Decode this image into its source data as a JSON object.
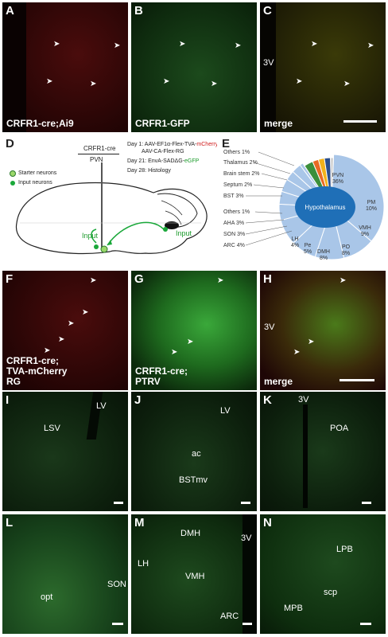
{
  "row1": {
    "A": {
      "letter": "A",
      "caption": "CRFR1-cre;Ai9"
    },
    "B": {
      "letter": "B",
      "caption": "CRFR1-GFP"
    },
    "C": {
      "letter": "C",
      "caption": "merge",
      "region": "3V"
    }
  },
  "D": {
    "letter": "D",
    "title": "CRFR1-cre",
    "subtitle": "PVN",
    "day1_prefix": "Day 1: AAV-EF1α-Flex-TVA-",
    "day1_mcherry": "mCherry",
    "day1_line2": "AAV-CA-Flex-RG",
    "day21_prefix": "Day 21: EnvA-SADΔG-",
    "day21_egfp": "eGFP",
    "day28": "Day 28: Histology",
    "legend_starter": "Starter neurons",
    "legend_input": "Input neurons",
    "input1": "Input",
    "input2": "Input"
  },
  "E": {
    "letter": "E",
    "center_label": "Hypothalamus",
    "colors": {
      "hypothalamus": "#a9c6e8",
      "hyp_center": "#1f6fb7",
      "brainstem": "#f2b21a",
      "septum": "#e96a24",
      "bst": "#3b8f3b",
      "thalamus": "#2b4f8c",
      "others_top": "#d0d0d0"
    }
  },
  "chart_data": {
    "type": "pie",
    "title": "",
    "slices": [
      {
        "label": "PVN",
        "value": 36
      },
      {
        "label": "PM",
        "value": 10
      },
      {
        "label": "VMH",
        "value": 9
      },
      {
        "label": "PO",
        "value": 8
      },
      {
        "label": "DMH",
        "value": 8
      },
      {
        "label": "Pe",
        "value": 5
      },
      {
        "label": "LH",
        "value": 4
      },
      {
        "label": "ARC",
        "value": 4
      },
      {
        "label": "SON",
        "value": 3
      },
      {
        "label": "AHA",
        "value": 3
      },
      {
        "label": "Others",
        "value": 1,
        "group": "hypothalamus"
      },
      {
        "label": "BST",
        "value": 3
      },
      {
        "label": "Septum",
        "value": 2
      },
      {
        "label": "Brain stem",
        "value": 2
      },
      {
        "label": "Thalamus",
        "value": 2
      },
      {
        "label": "Others",
        "value": 1
      }
    ],
    "display": {
      "PVN": "PVN 36%",
      "PM": "PM 10%",
      "VMH": "VMH 9%",
      "PO": "PO 8%",
      "DMH": "DMH 8%",
      "Pe": "Pe 5%",
      "LH": "LH 4%",
      "ARC": "ARC 4%",
      "SON": "SON 3%",
      "AHA": "AHA 3%",
      "Others_hyp": "Others 1%",
      "BST": "BST 3%",
      "Septum": "Septum 2%",
      "Brainstem": "Brain stem 2%",
      "Thalamus": "Thalamus 2%",
      "Others_top": "Others 1%"
    }
  },
  "row3": {
    "F": {
      "letter": "F",
      "caption_line1": "CRFR1-cre;",
      "caption_line2": "TVA-mCherry",
      "caption_line3": "RG"
    },
    "G": {
      "letter": "G",
      "caption_line1": "CRFR1-cre;",
      "caption_line2": "PTRV"
    },
    "H": {
      "letter": "H",
      "caption": "merge",
      "region": "3V"
    }
  },
  "row4": {
    "I": {
      "letter": "I",
      "r1": "LV",
      "r2": "LSV"
    },
    "J": {
      "letter": "J",
      "r1": "LV",
      "r2": "ac",
      "r3": "BSTmv"
    },
    "K": {
      "letter": "K",
      "r1": "3V",
      "r2": "POA"
    }
  },
  "row5": {
    "L": {
      "letter": "L",
      "r1": "opt",
      "r2": "SON"
    },
    "M": {
      "letter": "M",
      "r1": "DMH",
      "r2": "3V",
      "r3": "LH",
      "r4": "VMH",
      "r5": "ARC"
    },
    "N": {
      "letter": "N",
      "r1": "LPB",
      "r2": "scp",
      "r3": "MPB"
    }
  }
}
